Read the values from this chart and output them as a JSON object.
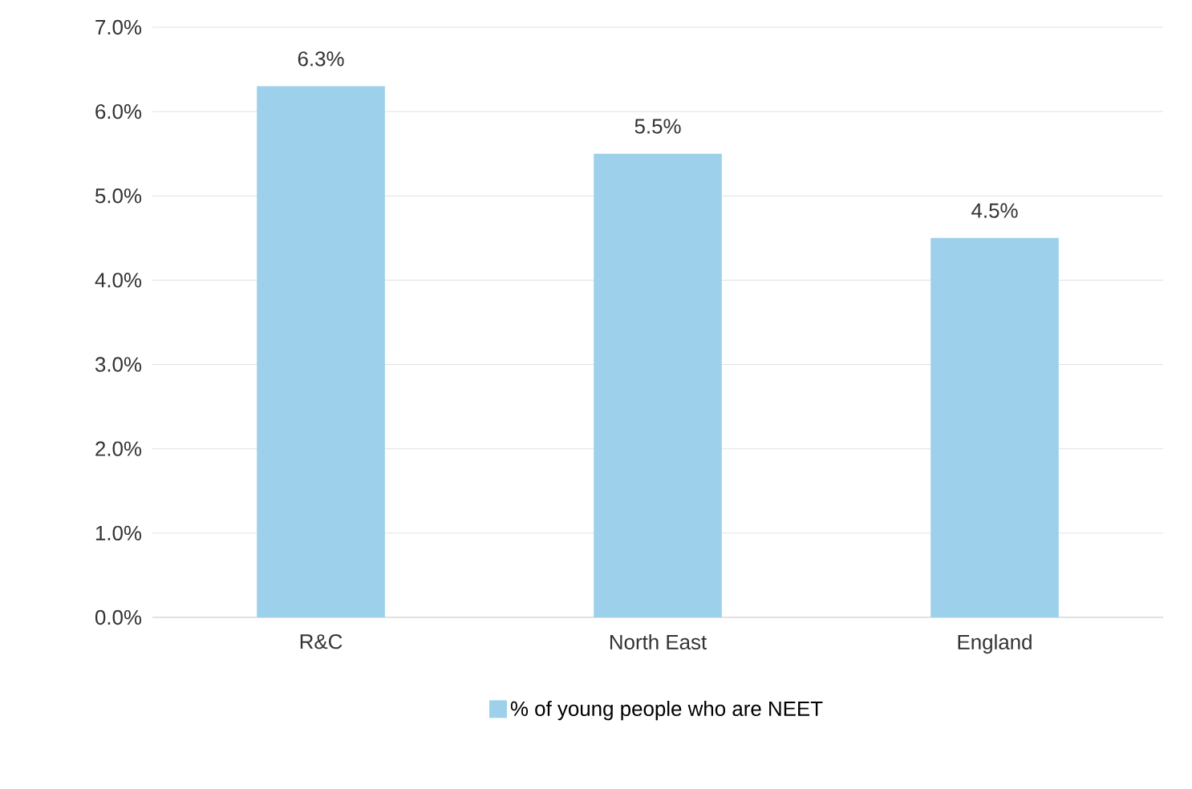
{
  "chart_data": {
    "type": "bar",
    "categories": [
      "R&C",
      "North East",
      "England"
    ],
    "series": [
      {
        "name": "% of young people who are NEET",
        "color": "#9dd0eb",
        "values": [
          6.3,
          5.5,
          4.5
        ],
        "value_labels": [
          "6.3%",
          "5.5%",
          "4.5%"
        ]
      }
    ],
    "ylim": [
      0,
      7
    ],
    "yticks": [
      {
        "value": 0,
        "label": "0.0%"
      },
      {
        "value": 1,
        "label": "1.0%"
      },
      {
        "value": 2,
        "label": "2.0%"
      },
      {
        "value": 3,
        "label": "3.0%"
      },
      {
        "value": 4,
        "label": "4.0%"
      },
      {
        "value": 5,
        "label": "5.0%"
      },
      {
        "value": 6,
        "label": "6.0%"
      },
      {
        "value": 7,
        "label": "7.0%"
      }
    ],
    "grid": "y",
    "legend": "bottom"
  }
}
